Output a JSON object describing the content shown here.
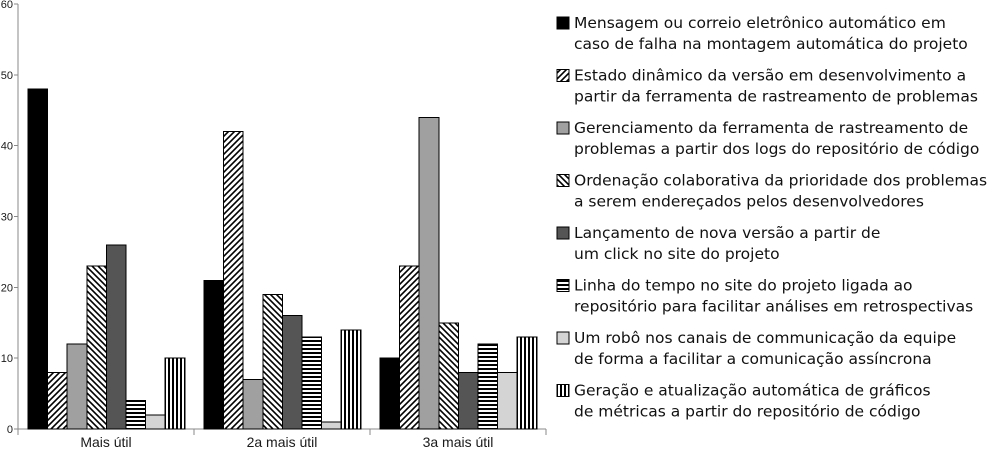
{
  "chart_data": {
    "type": "bar",
    "categories": [
      "Mais útil",
      "2a mais útil",
      "3a mais útil"
    ],
    "ylim": [
      0,
      60
    ],
    "yticks": [
      0,
      10,
      20,
      30,
      40,
      50,
      60
    ],
    "grid": false,
    "legend_position": "right",
    "series": [
      {
        "name": "Mensagem ou correio eletrônico automático em caso de falha na montagem automática do projeto",
        "legend_lines": [
          "Mensagem ou correio eletrônico automático em",
          "caso de falha na montagem automática do projeto"
        ],
        "values": [
          48,
          21,
          10
        ],
        "fill": "#000000",
        "pattern": "solid"
      },
      {
        "name": "Estado dinâmico da versão em desenvolvimento a partir da ferramenta de rastreamento de problemas",
        "legend_lines": [
          "Estado dinâmico da versão em desenvolvimento a",
          "partir da ferramenta de rastreamento de problemas"
        ],
        "values": [
          8,
          42,
          23
        ],
        "fill": "#ffffff",
        "pattern": "diag-forward"
      },
      {
        "name": "Gerenciamento da ferramenta de rastreamento de problemas a partir dos logs do repositório de código",
        "legend_lines": [
          "Gerenciamento da ferramenta de rastreamento de",
          "problemas a partir dos logs do repositório de código"
        ],
        "values": [
          12,
          7,
          44
        ],
        "fill": "#a0a0a0",
        "pattern": "solid"
      },
      {
        "name": "Ordenação colaborativa da prioridade dos problemas a serem endereçados pelos desenvolvedores",
        "legend_lines": [
          "Ordenação colaborativa da prioridade dos problemas",
          "a serem endereçados pelos desenvolvedores"
        ],
        "values": [
          23,
          19,
          15
        ],
        "fill": "#ffffff",
        "pattern": "diag-back"
      },
      {
        "name": "Lançamento de nova versão a partir de um click no site do projeto",
        "legend_lines": [
          "Lançamento de nova versão a partir de",
          "um click no site do projeto"
        ],
        "values": [
          26,
          16,
          8
        ],
        "fill": "#555555",
        "pattern": "solid"
      },
      {
        "name": "Linha do tempo no site do projeto ligada ao repositório para facilitar análises em retrospectivas",
        "legend_lines": [
          "Linha do tempo no site do projeto ligada ao",
          "repositório para facilitar análises em retrospectivas"
        ],
        "values": [
          4,
          13,
          12
        ],
        "fill": "#ffffff",
        "pattern": "horizontal"
      },
      {
        "name": "Um robô nos canais de communicação da equipe de forma a facilitar a comunicação assíncrona",
        "legend_lines": [
          "Um robô nos canais de communicação da equipe",
          "de forma a facilitar a comunicação assíncrona"
        ],
        "values": [
          2,
          1,
          8
        ],
        "fill": "#d4d4d4",
        "pattern": "solid"
      },
      {
        "name": "Geração e atualização automática de gráficos de métricas a partir do repositório de código",
        "legend_lines": [
          "Geração e atualização automática de gráficos",
          "de métricas a partir do repositório de código"
        ],
        "values": [
          10,
          14,
          13
        ],
        "fill": "#ffffff",
        "pattern": "vertical"
      }
    ]
  }
}
